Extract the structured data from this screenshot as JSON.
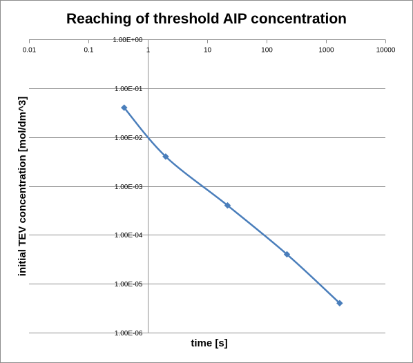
{
  "chart_data": {
    "type": "scatter",
    "title": "Reaching of threshold AIP concentration",
    "xlabel": "time [s]",
    "ylabel": "initial TEV concentration [mol/dm^3]",
    "x_scale": "log",
    "y_scale": "log",
    "xlim": [
      0.01,
      10000
    ],
    "ylim": [
      1e-06,
      1
    ],
    "x_ticks": [
      0.01,
      0.1,
      1,
      10,
      100,
      1000,
      10000
    ],
    "x_tick_labels": [
      "0.01",
      "0.1",
      "1",
      "10",
      "100",
      "1000",
      "10000"
    ],
    "y_ticks": [
      1,
      0.1,
      0.01,
      0.001,
      0.0001,
      1e-05,
      1e-06
    ],
    "y_tick_labels": [
      "1.00E+00",
      "1.00E-01",
      "1.00E-02",
      "1.00E-03",
      "1.00E-04",
      "1.00E-05",
      "1.00E-06"
    ],
    "x_axis_position": "top",
    "y_axis_crosses_at_x": 1,
    "grid": "horizontal",
    "legend": "none",
    "series": [
      {
        "x": [
          0.4,
          2,
          22,
          220,
          1700
        ],
        "y": [
          0.04,
          0.004,
          0.0004,
          4e-05,
          4e-06
        ],
        "color": "#4a7ebb",
        "marker": "diamond",
        "line": "smoothed"
      }
    ]
  }
}
